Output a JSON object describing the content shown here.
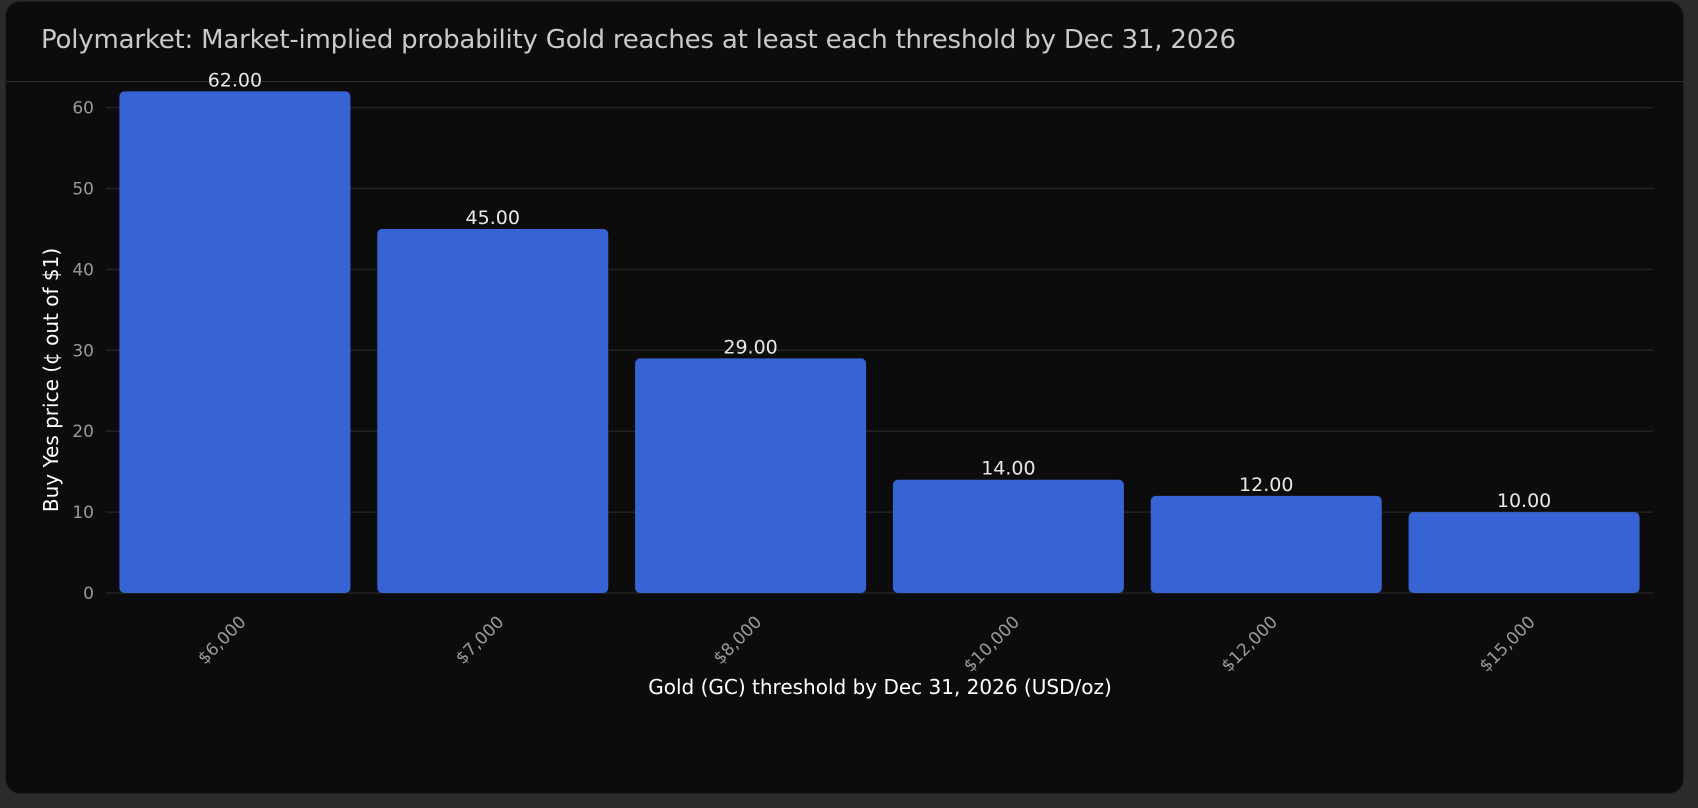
{
  "title": "Polymarket: Market-implied probability Gold reaches at least each threshold by Dec 31, 2026",
  "colors": {
    "background": "#0c0c0c",
    "bar": "#3763d4",
    "grid": "#232325",
    "text": "#c9c9c9"
  },
  "chart_data": {
    "type": "bar",
    "categories": [
      "$6,000",
      "$7,000",
      "$8,000",
      "$10,000",
      "$12,000",
      "$15,000"
    ],
    "values": [
      62,
      45,
      29,
      14,
      12,
      10
    ],
    "data_labels": [
      "62.00",
      "45.00",
      "29.00",
      "14.00",
      "12.00",
      "10.00"
    ],
    "xlabel": "Gold (GC) threshold by Dec 31, 2026 (USD/oz)",
    "ylabel": "Buy Yes price (¢ out of $1)",
    "ylim": [
      0,
      60
    ],
    "yticks": [
      0,
      10,
      20,
      30,
      40,
      50,
      60
    ],
    "grid": true,
    "legend": "none"
  }
}
